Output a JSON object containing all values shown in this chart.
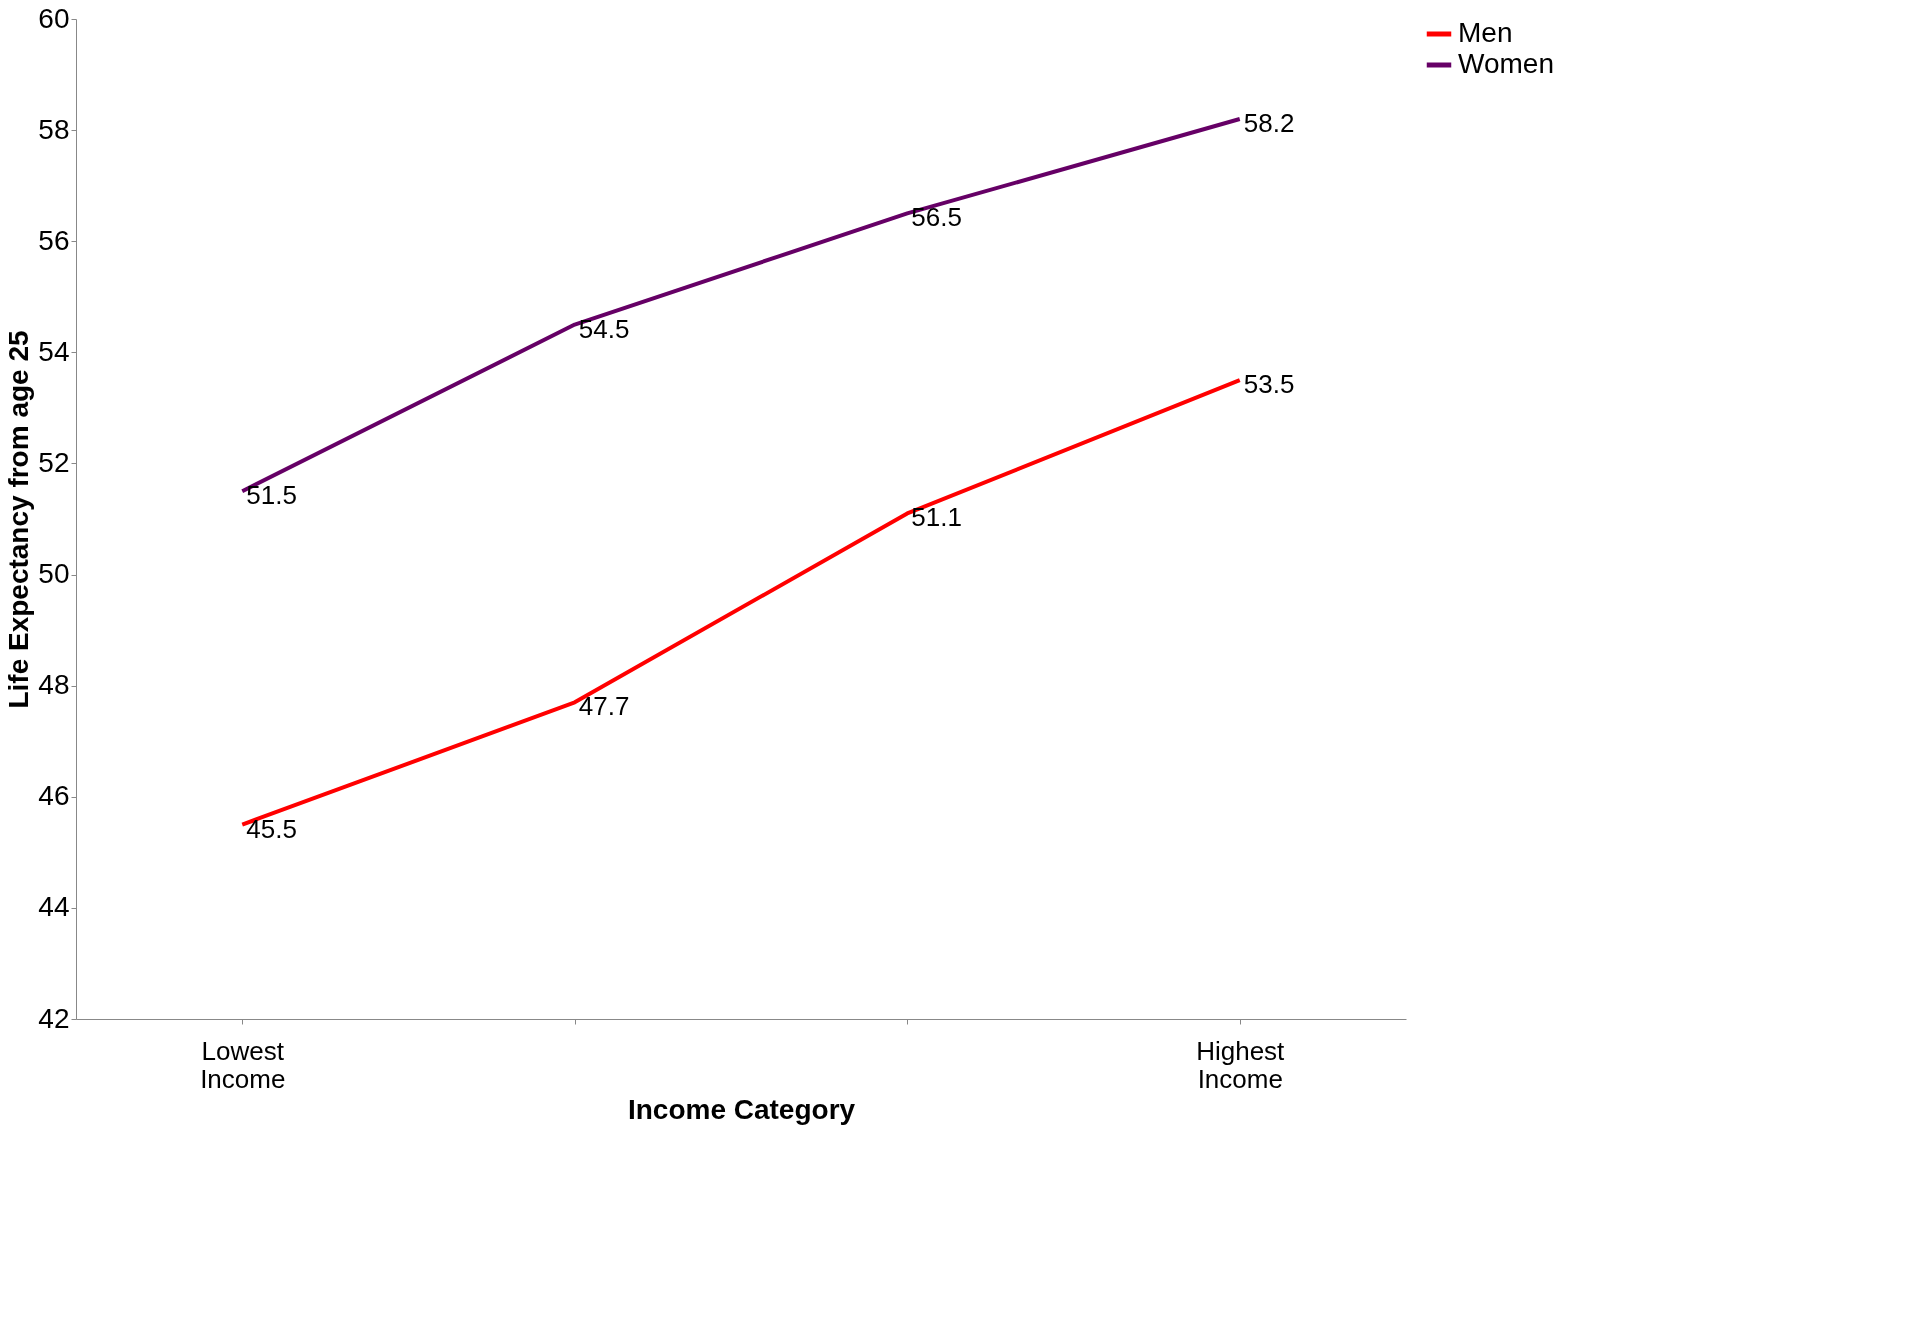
{
  "chart_data": {
    "type": "line",
    "xlabel": "Income Category",
    "ylabel": "Life Expectancy from age 25",
    "categories": [
      "Lowest Income",
      null,
      null,
      "Highest Income"
    ],
    "series": [
      {
        "name": "Men",
        "color": "#ff0000",
        "values": [
          45.5,
          47.7,
          51.1,
          53.5
        ]
      },
      {
        "name": "Women",
        "color": "#660066",
        "values": [
          51.5,
          54.5,
          56.5,
          58.2
        ]
      }
    ],
    "ylim": [
      42,
      60
    ],
    "yticks": [
      42,
      44,
      46,
      48,
      50,
      52,
      54,
      56,
      58,
      60
    ],
    "grid": false,
    "legend": "right",
    "data_labels": true,
    "marker": "none"
  }
}
